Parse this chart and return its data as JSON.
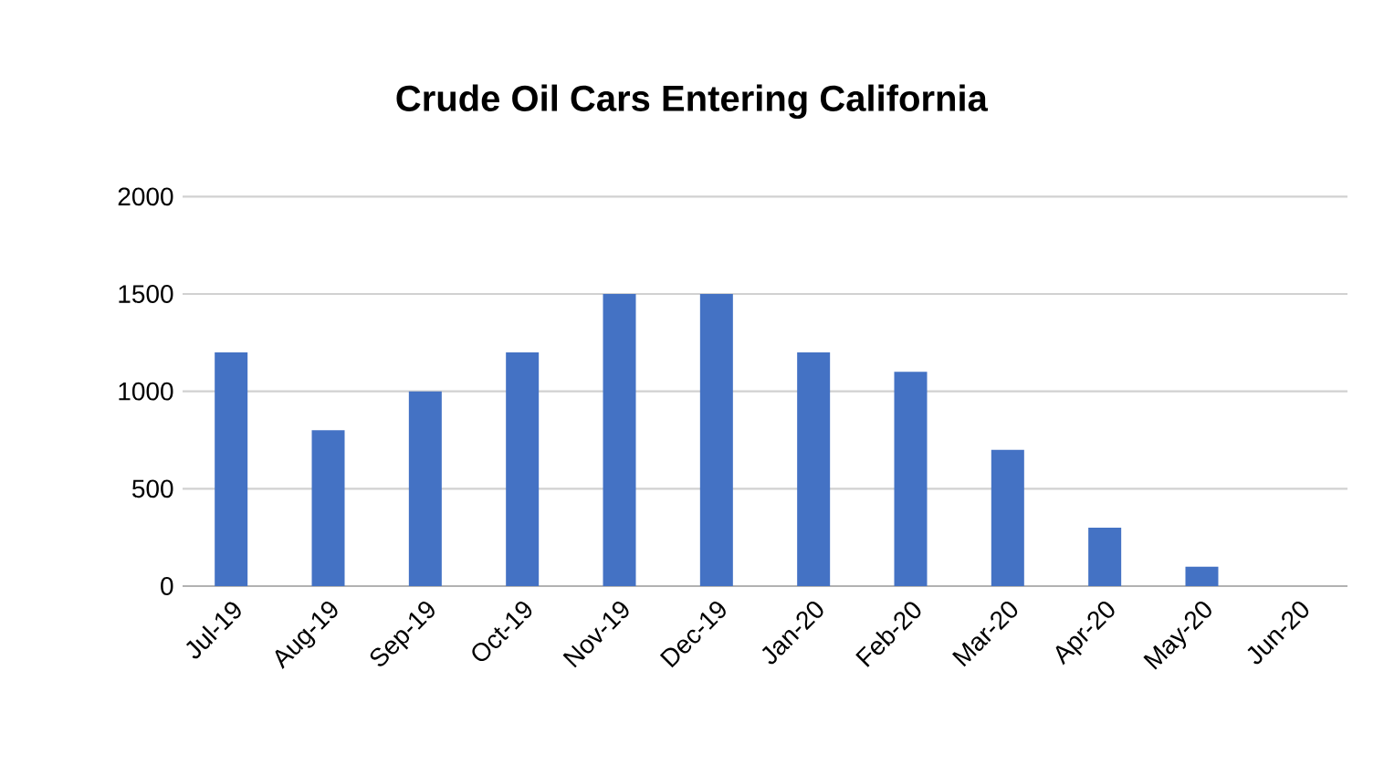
{
  "chart_data": {
    "type": "bar",
    "title": "Crude Oil Cars Entering California",
    "categories": [
      "Jul-19",
      "Aug-19",
      "Sep-19",
      "Oct-19",
      "Nov-19",
      "Dec-19",
      "Jan-20",
      "Feb-20",
      "Mar-20",
      "Apr-20",
      "May-20",
      "Jun-20"
    ],
    "values": [
      1200,
      800,
      1000,
      1200,
      1500,
      1500,
      1200,
      1100,
      700,
      300,
      100,
      0
    ],
    "color": "#4472c4",
    "ylim": [
      0,
      2000
    ],
    "yticks": [
      0,
      500,
      1000,
      1500,
      2000
    ],
    "grid": "y"
  }
}
